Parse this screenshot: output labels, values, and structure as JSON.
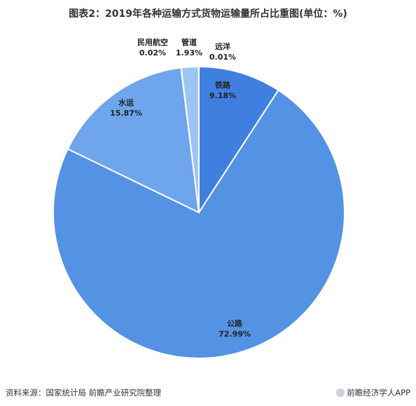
{
  "title": "图表2：2019年各种运输方式货物运输量所占比重图(单位：%)",
  "source": "资料来源：国家统计局 前瞻产业研究院整理",
  "brand": "前瞻经济学人APP",
  "colors": {
    "铁路": "#3f7fdf",
    "公路": "#5492e4",
    "水运": "#6ea5ec",
    "民用航空": "#8cb8f0",
    "管道": "#9ec4f3",
    "远洋": "#b0d0f6"
  },
  "chart_data": {
    "type": "pie",
    "title": "图表2：2019年各种运输方式货物运输量所占比重图(单位：%)",
    "slices": [
      {
        "label": "铁路",
        "value": 9.18,
        "display": "9.18%"
      },
      {
        "label": "公路",
        "value": 72.99,
        "display": "72.99%"
      },
      {
        "label": "水运",
        "value": 15.87,
        "display": "15.87%"
      },
      {
        "label": "民用航空",
        "value": 0.02,
        "display": "0.02%"
      },
      {
        "label": "管道",
        "value": 1.93,
        "display": "1.93%"
      },
      {
        "label": "远洋",
        "value": 0.01,
        "display": "0.01%"
      }
    ]
  }
}
